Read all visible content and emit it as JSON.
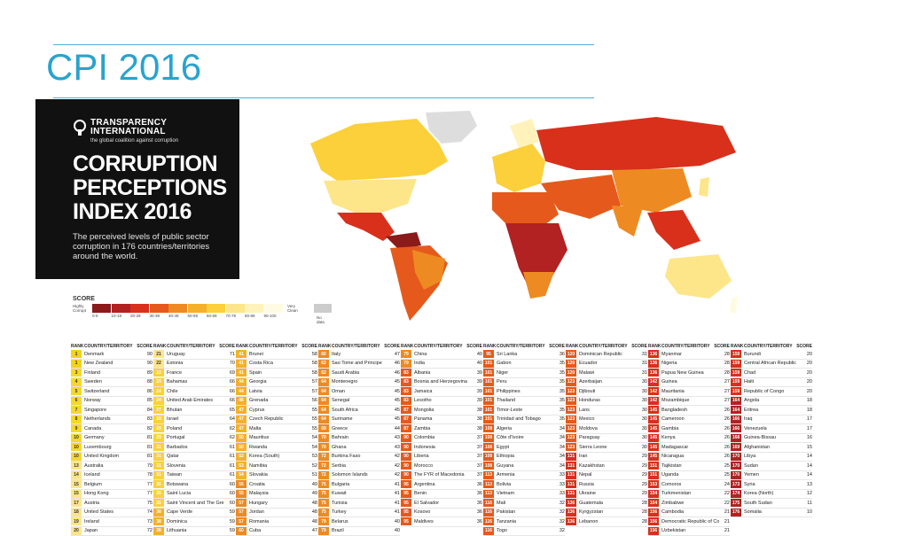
{
  "slide": {
    "title": "CPI 2016"
  },
  "panel": {
    "org_name_line1": "TRANSPARENCY",
    "org_name_line2": "INTERNATIONAL",
    "tagline": "the global coalition against corruption",
    "heading_line1": "CORRUPTION",
    "heading_line2": "PERCEPTIONS",
    "heading_line3": "INDEX 2016",
    "description": "The perceived levels of public sector corruption in 176 countries/territories around the world."
  },
  "legend": {
    "title": "SCORE",
    "low_label": "Highly Corrupt",
    "high_label": "Very Clean",
    "ranges": [
      "0-9",
      "10-19",
      "20-29",
      "30-39",
      "40-49",
      "50-59",
      "60-69",
      "70-79",
      "80-89",
      "90-100"
    ],
    "colors": [
      "#8b1a1a",
      "#b22222",
      "#d8301b",
      "#e55a1c",
      "#ee8a22",
      "#f5b02a",
      "#fbd03a",
      "#fde58a",
      "#fff2bb",
      "#fffbe3"
    ],
    "no_data_label": "No data",
    "no_data_color": "#cccccc"
  },
  "table": {
    "headers": {
      "rank": "RANK",
      "country": "COUNTRY/TERRITORY",
      "score": "SCORE"
    },
    "columns": [
      [
        [
          "1",
          "Denmark",
          "90"
        ],
        [
          "1",
          "New Zealand",
          "90"
        ],
        [
          "3",
          "Finland",
          "89"
        ],
        [
          "4",
          "Sweden",
          "88"
        ],
        [
          "5",
          "Switzerland",
          "86"
        ],
        [
          "6",
          "Norway",
          "85"
        ],
        [
          "7",
          "Singapore",
          "84"
        ],
        [
          "8",
          "Netherlands",
          "83"
        ],
        [
          "9",
          "Canada",
          "82"
        ],
        [
          "10",
          "Germany",
          "81"
        ],
        [
          "10",
          "Luxembourg",
          "81"
        ],
        [
          "10",
          "United Kingdom",
          "81"
        ],
        [
          "13",
          "Australia",
          "79"
        ],
        [
          "14",
          "Iceland",
          "78"
        ],
        [
          "15",
          "Belgium",
          "77"
        ],
        [
          "15",
          "Hong Kong",
          "77"
        ],
        [
          "17",
          "Austria",
          "75"
        ],
        [
          "18",
          "United States",
          "74"
        ],
        [
          "19",
          "Ireland",
          "73"
        ],
        [
          "20",
          "Japan",
          "72"
        ]
      ],
      [
        [
          "21",
          "Uruguay",
          "71"
        ],
        [
          "22",
          "Estonia",
          "70"
        ],
        [
          "23",
          "France",
          "69"
        ],
        [
          "24",
          "Bahamas",
          "66"
        ],
        [
          "24",
          "Chile",
          "66"
        ],
        [
          "24",
          "United Arab Emirates",
          "66"
        ],
        [
          "27",
          "Bhutan",
          "65"
        ],
        [
          "28",
          "Israel",
          "64"
        ],
        [
          "29",
          "Poland",
          "62"
        ],
        [
          "29",
          "Portugal",
          "62"
        ],
        [
          "31",
          "Barbados",
          "61"
        ],
        [
          "31",
          "Qatar",
          "61"
        ],
        [
          "31",
          "Slovenia",
          "61"
        ],
        [
          "31",
          "Taiwan",
          "61"
        ],
        [
          "35",
          "Botswana",
          "60"
        ],
        [
          "35",
          "Saint Lucia",
          "60"
        ],
        [
          "35",
          "Saint Vincent and The Grenadines",
          "60"
        ],
        [
          "38",
          "Cape Verde",
          "59"
        ],
        [
          "38",
          "Dominica",
          "59"
        ],
        [
          "38",
          "Lithuania",
          "59"
        ]
      ],
      [
        [
          "41",
          "Brunei",
          "58"
        ],
        [
          "41",
          "Costa Rica",
          "58"
        ],
        [
          "41",
          "Spain",
          "58"
        ],
        [
          "44",
          "Georgia",
          "57"
        ],
        [
          "44",
          "Latvia",
          "57"
        ],
        [
          "46",
          "Grenada",
          "56"
        ],
        [
          "47",
          "Cyprus",
          "55"
        ],
        [
          "47",
          "Czech Republic",
          "55"
        ],
        [
          "47",
          "Malta",
          "55"
        ],
        [
          "50",
          "Mauritius",
          "54"
        ],
        [
          "50",
          "Rwanda",
          "54"
        ],
        [
          "52",
          "Korea (South)",
          "53"
        ],
        [
          "53",
          "Namibia",
          "52"
        ],
        [
          "54",
          "Slovakia",
          "51"
        ],
        [
          "55",
          "Croatia",
          "49"
        ],
        [
          "55",
          "Malaysia",
          "49"
        ],
        [
          "57",
          "Hungary",
          "48"
        ],
        [
          "57",
          "Jordan",
          "48"
        ],
        [
          "57",
          "Romania",
          "48"
        ],
        [
          "60",
          "Cuba",
          "47"
        ]
      ],
      [
        [
          "60",
          "Italy",
          "47"
        ],
        [
          "62",
          "Sao Tome and Principe",
          "46"
        ],
        [
          "62",
          "Saudi Arabia",
          "46"
        ],
        [
          "64",
          "Montenegro",
          "45"
        ],
        [
          "64",
          "Oman",
          "45"
        ],
        [
          "64",
          "Senegal",
          "45"
        ],
        [
          "64",
          "South Africa",
          "45"
        ],
        [
          "64",
          "Suriname",
          "45"
        ],
        [
          "69",
          "Greece",
          "44"
        ],
        [
          "70",
          "Bahrain",
          "43"
        ],
        [
          "70",
          "Ghana",
          "43"
        ],
        [
          "72",
          "Burkina Faso",
          "42"
        ],
        [
          "72",
          "Serbia",
          "42"
        ],
        [
          "72",
          "Solomon Islands",
          "42"
        ],
        [
          "75",
          "Bulgaria",
          "41"
        ],
        [
          "75",
          "Kuwait",
          "41"
        ],
        [
          "75",
          "Tunisia",
          "41"
        ],
        [
          "75",
          "Turkey",
          "41"
        ],
        [
          "79",
          "Belarus",
          "40"
        ],
        [
          "79",
          "Brazil",
          "40"
        ]
      ],
      [
        [
          "79",
          "China",
          "40"
        ],
        [
          "79",
          "India",
          "40"
        ],
        [
          "83",
          "Albania",
          "39"
        ],
        [
          "83",
          "Bosnia and Herzegovina",
          "39"
        ],
        [
          "83",
          "Jamaica",
          "39"
        ],
        [
          "83",
          "Lesotho",
          "39"
        ],
        [
          "87",
          "Mongolia",
          "38"
        ],
        [
          "87",
          "Panama",
          "38"
        ],
        [
          "87",
          "Zambia",
          "38"
        ],
        [
          "90",
          "Colombia",
          "37"
        ],
        [
          "90",
          "Indonesia",
          "37"
        ],
        [
          "90",
          "Liberia",
          "37"
        ],
        [
          "90",
          "Morocco",
          "37"
        ],
        [
          "90",
          "The FYR of Macedonia",
          "37"
        ],
        [
          "95",
          "Argentina",
          "36"
        ],
        [
          "95",
          "Benin",
          "36"
        ],
        [
          "95",
          "El Salvador",
          "36"
        ],
        [
          "95",
          "Kosovo",
          "36"
        ],
        [
          "95",
          "Maldives",
          "36"
        ]
      ],
      [
        [
          "95",
          "Sri Lanka",
          "36"
        ],
        [
          "101",
          "Gabon",
          "35"
        ],
        [
          "101",
          "Niger",
          "35"
        ],
        [
          "101",
          "Peru",
          "35"
        ],
        [
          "101",
          "Philippines",
          "35"
        ],
        [
          "101",
          "Thailand",
          "35"
        ],
        [
          "101",
          "Timor-Leste",
          "35"
        ],
        [
          "101",
          "Trinidad and Tobago",
          "35"
        ],
        [
          "108",
          "Algeria",
          "34"
        ],
        [
          "108",
          "Côte d'Ivoire",
          "34"
        ],
        [
          "108",
          "Egypt",
          "34"
        ],
        [
          "108",
          "Ethiopia",
          "34"
        ],
        [
          "108",
          "Guyana",
          "34"
        ],
        [
          "113",
          "Armenia",
          "33"
        ],
        [
          "113",
          "Bolivia",
          "33"
        ],
        [
          "113",
          "Vietnam",
          "33"
        ],
        [
          "116",
          "Mali",
          "32"
        ],
        [
          "116",
          "Pakistan",
          "32"
        ],
        [
          "116",
          "Tanzania",
          "32"
        ],
        [
          "116",
          "Togo",
          "32"
        ]
      ],
      [
        [
          "120",
          "Dominican Republic",
          "31"
        ],
        [
          "120",
          "Ecuador",
          "31"
        ],
        [
          "120",
          "Malawi",
          "31"
        ],
        [
          "123",
          "Azerbaijan",
          "30"
        ],
        [
          "123",
          "Djibouti",
          "30"
        ],
        [
          "123",
          "Honduras",
          "30"
        ],
        [
          "123",
          "Laos",
          "30"
        ],
        [
          "123",
          "Mexico",
          "30"
        ],
        [
          "123",
          "Moldova",
          "30"
        ],
        [
          "123",
          "Paraguay",
          "30"
        ],
        [
          "123",
          "Sierra Leone",
          "30"
        ],
        [
          "131",
          "Iran",
          "29"
        ],
        [
          "131",
          "Kazakhstan",
          "29"
        ],
        [
          "131",
          "Nepal",
          "29"
        ],
        [
          "131",
          "Russia",
          "29"
        ],
        [
          "131",
          "Ukraine",
          "29"
        ],
        [
          "136",
          "Guatemala",
          "28"
        ],
        [
          "136",
          "Kyrgyzstan",
          "28"
        ],
        [
          "136",
          "Lebanon",
          "28"
        ]
      ],
      [
        [
          "136",
          "Myanmar",
          "28"
        ],
        [
          "136",
          "Nigeria",
          "28"
        ],
        [
          "136",
          "Papua New Guinea",
          "28"
        ],
        [
          "142",
          "Guinea",
          "27"
        ],
        [
          "142",
          "Mauritania",
          "27"
        ],
        [
          "142",
          "Mozambique",
          "27"
        ],
        [
          "145",
          "Bangladesh",
          "26"
        ],
        [
          "145",
          "Cameroon",
          "26"
        ],
        [
          "145",
          "Gambia",
          "26"
        ],
        [
          "145",
          "Kenya",
          "26"
        ],
        [
          "145",
          "Madagascar",
          "26"
        ],
        [
          "145",
          "Nicaragua",
          "26"
        ],
        [
          "151",
          "Tajikistan",
          "25"
        ],
        [
          "151",
          "Uganda",
          "25"
        ],
        [
          "153",
          "Comoros",
          "24"
        ],
        [
          "154",
          "Turkmenistan",
          "22"
        ],
        [
          "154",
          "Zimbabwe",
          "22"
        ],
        [
          "156",
          "Cambodia",
          "21"
        ],
        [
          "156",
          "Democratic Republic of Congo",
          "21"
        ],
        [
          "156",
          "Uzbekistan",
          "21"
        ]
      ],
      [
        [
          "159",
          "Burundi",
          "20"
        ],
        [
          "159",
          "Central African Republic",
          "20"
        ],
        [
          "159",
          "Chad",
          "20"
        ],
        [
          "159",
          "Haiti",
          "20"
        ],
        [
          "159",
          "Republic of Congo",
          "20"
        ],
        [
          "164",
          "Angola",
          "18"
        ],
        [
          "164",
          "Eritrea",
          "18"
        ],
        [
          "166",
          "Iraq",
          "17"
        ],
        [
          "166",
          "Venezuela",
          "17"
        ],
        [
          "168",
          "Guinea-Bissau",
          "16"
        ],
        [
          "169",
          "Afghanistan",
          "15"
        ],
        [
          "170",
          "Libya",
          "14"
        ],
        [
          "170",
          "Sudan",
          "14"
        ],
        [
          "170",
          "Yemen",
          "14"
        ],
        [
          "173",
          "Syria",
          "13"
        ],
        [
          "174",
          "Korea (North)",
          "12"
        ],
        [
          "175",
          "South Sudan",
          "11"
        ],
        [
          "176",
          "Somalia",
          "10"
        ]
      ]
    ]
  }
}
